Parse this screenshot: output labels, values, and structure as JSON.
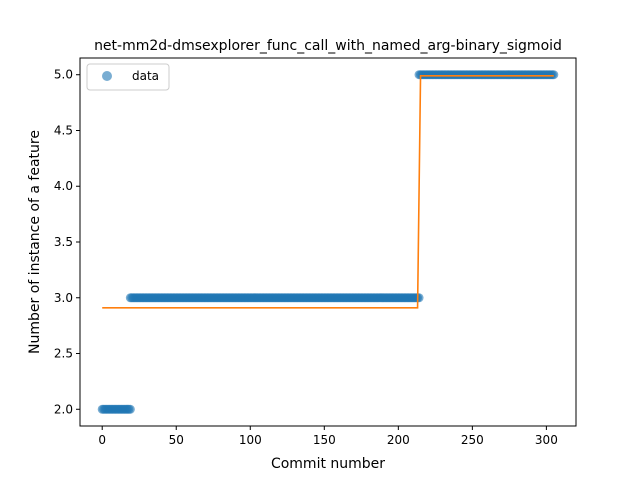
{
  "chart_data": {
    "type": "scatter",
    "title": "net-mm2d-dmsexplorer_func_call_with_named_arg-binary_sigmoid",
    "xlabel": "Commit number",
    "ylabel": "Number of instance of a feature",
    "xlim": [
      -15,
      320
    ],
    "ylim": [
      1.85,
      5.15
    ],
    "xticks": [
      0,
      50,
      100,
      150,
      200,
      250,
      300
    ],
    "yticks": [
      2.0,
      2.5,
      3.0,
      3.5,
      4.0,
      4.5,
      5.0
    ],
    "xtick_labels": [
      "0",
      "50",
      "100",
      "150",
      "200",
      "250",
      "300"
    ],
    "ytick_labels": [
      "2.0",
      "2.5",
      "3.0",
      "3.5",
      "4.0",
      "4.5",
      "5.0"
    ],
    "legend": {
      "position": "upper-left",
      "entries": [
        "data"
      ]
    },
    "colors": {
      "points": "#1f77b4",
      "fit": "#ff7f0e"
    },
    "series": [
      {
        "name": "data",
        "kind": "points",
        "segments": [
          {
            "x_start": 0,
            "x_end": 19,
            "y": 2.0
          },
          {
            "x_start": 19,
            "x_end": 214,
            "y": 3.0
          },
          {
            "x_start": 214,
            "x_end": 305,
            "y": 5.0
          }
        ]
      },
      {
        "kind": "line",
        "points": [
          [
            0,
            2.91
          ],
          [
            213,
            2.91
          ],
          [
            215,
            4.99
          ],
          [
            305,
            4.99
          ]
        ]
      }
    ]
  }
}
